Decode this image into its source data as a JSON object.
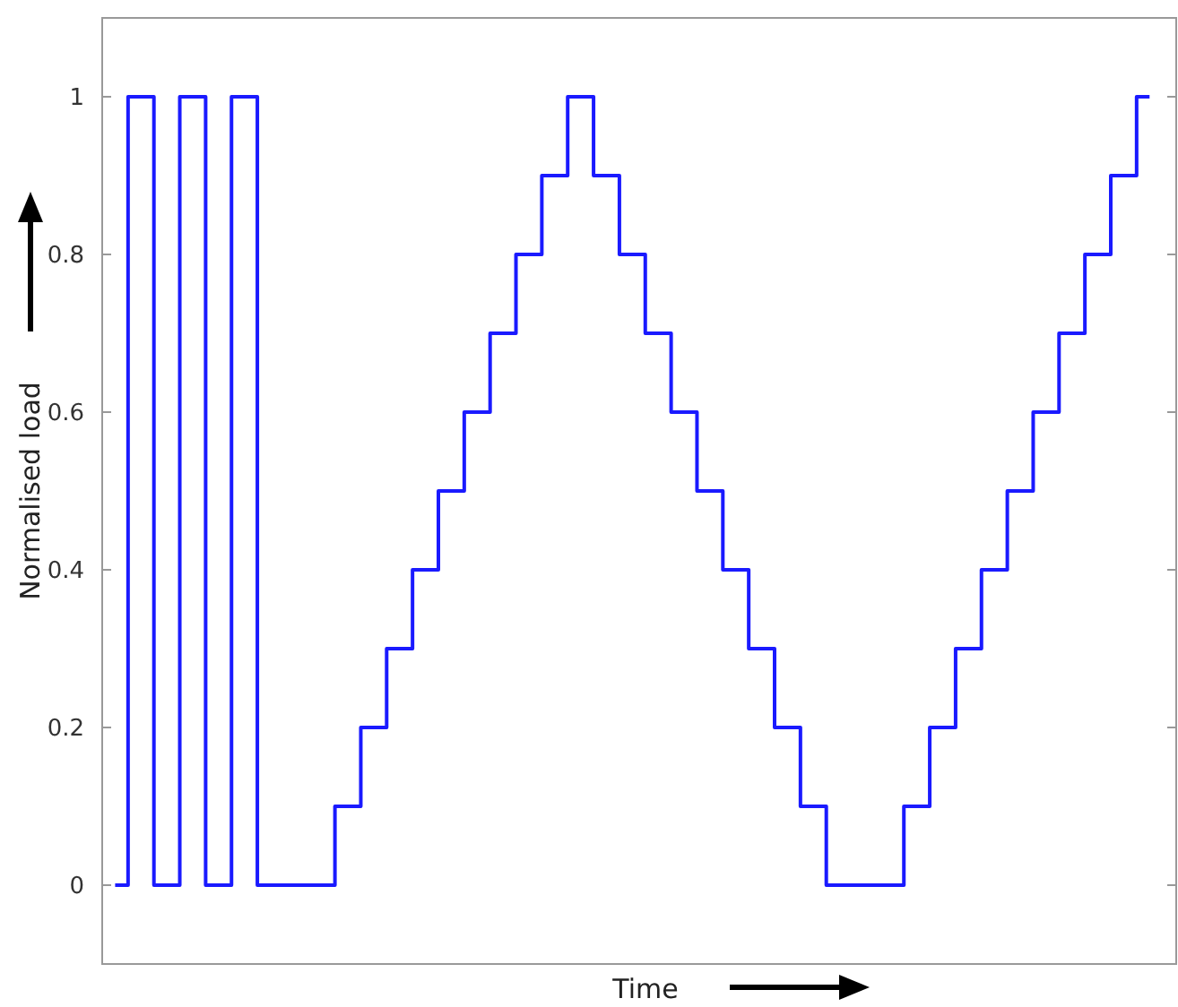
{
  "chart_data": {
    "type": "step",
    "xlabel": "Time",
    "ylabel": "Normalised load",
    "categories": [
      null,
      null,
      null,
      null,
      null,
      null,
      null,
      null,
      null,
      null,
      null,
      null,
      null,
      null,
      null,
      null,
      null,
      null,
      null,
      null,
      null,
      null,
      null,
      null,
      null,
      null,
      null,
      null,
      null,
      null,
      null,
      null,
      null,
      null,
      null,
      null,
      null,
      null,
      null,
      null,
      null
    ],
    "series": [
      {
        "color": "#1a1aff",
        "values": [
          0,
          1,
          0,
          1,
          0,
          1,
          0,
          0,
          0,
          0.1,
          0.2,
          0.3,
          0.4,
          0.5,
          0.6,
          0.7,
          0.8,
          0.9,
          1,
          0.9,
          0.8,
          0.7,
          0.6,
          0.5,
          0.4,
          0.3,
          0.2,
          0.1,
          0,
          0,
          0,
          0.1,
          0.2,
          0.3,
          0.4,
          0.5,
          0.6,
          0.7,
          0.8,
          0.9,
          1
        ]
      }
    ],
    "ylim": [
      -0.1,
      1.1
    ],
    "yticks": [
      0,
      0.2,
      0.4,
      0.6,
      0.8,
      1
    ],
    "tick_labels": "y",
    "grid": false
  }
}
